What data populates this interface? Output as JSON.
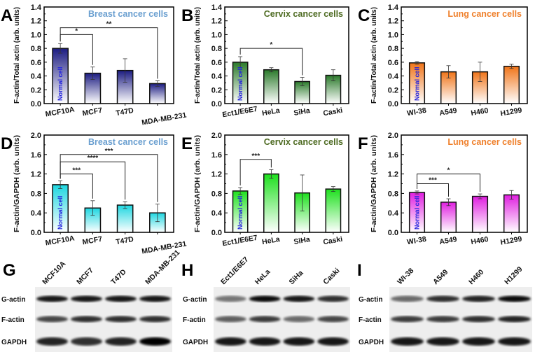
{
  "chart_data": [
    {
      "panel": "A",
      "type": "bar",
      "title": "Breast cancer cells",
      "title_color": "#6a9fd0",
      "ylabel": "F-actin/Total actin (arb. units)",
      "ylim": [
        0,
        1.4
      ],
      "yticks": [
        "0.0",
        "0.2",
        "0.4",
        "0.6",
        "0.8",
        "1.0",
        "1.2",
        "1.4"
      ],
      "categories": [
        "MCF10A",
        "MCF7",
        "T47D",
        "MDA-MB-231"
      ],
      "values": [
        0.8,
        0.44,
        0.48,
        0.29
      ],
      "errors": [
        0.07,
        0.09,
        0.17,
        0.04
      ],
      "bar_color": "#1c1c82",
      "normal_label": "Normal cell",
      "significance": [
        {
          "from": 0,
          "to": 1,
          "y": 1.0,
          "label": "*"
        },
        {
          "from": 0,
          "to": 3,
          "y": 1.1,
          "label": "**"
        }
      ]
    },
    {
      "panel": "B",
      "type": "bar",
      "title": "Cervix cancer cells",
      "title_color": "#4e6b22",
      "ylabel": "F-actin/Total actin (arb. units)",
      "ylim": [
        0,
        1.4
      ],
      "yticks": [
        "0.0",
        "0.2",
        "0.4",
        "0.6",
        "0.8",
        "1.0",
        "1.2",
        "1.4"
      ],
      "categories": [
        "Ect1/E6E7",
        "HeLa",
        "SiHa",
        "Caski"
      ],
      "values": [
        0.6,
        0.49,
        0.32,
        0.41
      ],
      "errors": [
        0.08,
        0.03,
        0.06,
        0.08
      ],
      "bar_color": "#2a7a2a",
      "normal_label": "Normal cell",
      "significance": [
        {
          "from": 0,
          "to": 2,
          "y": 0.8,
          "label": "*"
        }
      ]
    },
    {
      "panel": "C",
      "type": "bar",
      "title": "Lung cancer cells",
      "title_color": "#ef7f2a",
      "ylabel": "F-actin/Total actin (arb. units)",
      "ylim": [
        0,
        1.4
      ],
      "yticks": [
        "0.0",
        "0.2",
        "0.4",
        "0.6",
        "0.8",
        "1.0",
        "1.2",
        "1.4"
      ],
      "categories": [
        "WI-38",
        "A549",
        "H460",
        "H1299"
      ],
      "values": [
        0.59,
        0.46,
        0.46,
        0.54
      ],
      "errors": [
        0.02,
        0.09,
        0.14,
        0.03
      ],
      "bar_color": "#f07418",
      "normal_label": "Normal cell",
      "significance": []
    },
    {
      "panel": "D",
      "type": "bar",
      "title": "Breast cancer cells",
      "title_color": "#6a9fd0",
      "ylabel": "F-actin/GAPDH (arb. units)",
      "ylim": [
        0,
        2.0
      ],
      "yticks": [
        "0.0",
        "0.4",
        "0.8",
        "1.2",
        "1.6",
        "2.0"
      ],
      "categories": [
        "MCF10A",
        "MCF7",
        "T47D",
        "MDA-MB-231"
      ],
      "values": [
        0.98,
        0.5,
        0.56,
        0.4
      ],
      "errors": [
        0.08,
        0.15,
        0.07,
        0.18
      ],
      "bar_color": "#1ed6e0",
      "normal_label": "Normal cell",
      "significance": [
        {
          "from": 0,
          "to": 1,
          "y": 1.2,
          "label": "***"
        },
        {
          "from": 0,
          "to": 2,
          "y": 1.45,
          "label": "****"
        },
        {
          "from": 0,
          "to": 3,
          "y": 1.6,
          "label": "***"
        }
      ]
    },
    {
      "panel": "E",
      "type": "bar",
      "title": "Cervix cancer cells",
      "title_color": "#4e6b22",
      "ylabel": "F-actin/GAPDH (arb. units)",
      "ylim": [
        0,
        2.0
      ],
      "yticks": [
        "0.0",
        "0.4",
        "0.8",
        "1.2",
        "1.6",
        "2.0"
      ],
      "categories": [
        "Ect1/E6E7",
        "HeLa",
        "SiHa",
        "Caski"
      ],
      "values": [
        0.85,
        1.2,
        0.81,
        0.89
      ],
      "errors": [
        0.07,
        0.09,
        0.37,
        0.05
      ],
      "bar_color": "#1ee01e",
      "normal_label": "Normal cell",
      "significance": [
        {
          "from": 0,
          "to": 1,
          "y": 1.5,
          "label": "***"
        }
      ]
    },
    {
      "panel": "F",
      "type": "bar",
      "title": "Lung cancer cells",
      "title_color": "#ef7f2a",
      "ylabel": "F-actin/GAPDH (arb. units)",
      "ylim": [
        0,
        2.0
      ],
      "yticks": [
        "0.0",
        "0.4",
        "0.8",
        "1.2",
        "1.6",
        "2.0"
      ],
      "categories": [
        "WI-38",
        "A549",
        "H460",
        "H1299"
      ],
      "values": [
        0.82,
        0.62,
        0.74,
        0.77
      ],
      "errors": [
        0.03,
        0.07,
        0.05,
        0.09
      ],
      "bar_color": "#e01ee0",
      "normal_label": "Normal cell",
      "significance": [
        {
          "from": 0,
          "to": 1,
          "y": 1.0,
          "label": "***"
        },
        {
          "from": 0,
          "to": 2,
          "y": 1.2,
          "label": "*"
        }
      ]
    }
  ],
  "blots": [
    {
      "panel": "G",
      "lanes": [
        "MCF10A",
        "MCF7",
        "T47D",
        "MDA-MB-231"
      ],
      "rows": [
        "G-actin",
        "F-actin",
        "GAPDH"
      ]
    },
    {
      "panel": "H",
      "lanes": [
        "Ect1/E6E7",
        "HeLa",
        "SiHa",
        "Caski"
      ],
      "rows": [
        "G-actin",
        "F-actin",
        "GAPDH"
      ]
    },
    {
      "panel": "I",
      "lanes": [
        "WI-38",
        "A549",
        "H460",
        "H1299"
      ],
      "rows": [
        "G-actin",
        "F-actin",
        "GAPDH"
      ]
    }
  ]
}
